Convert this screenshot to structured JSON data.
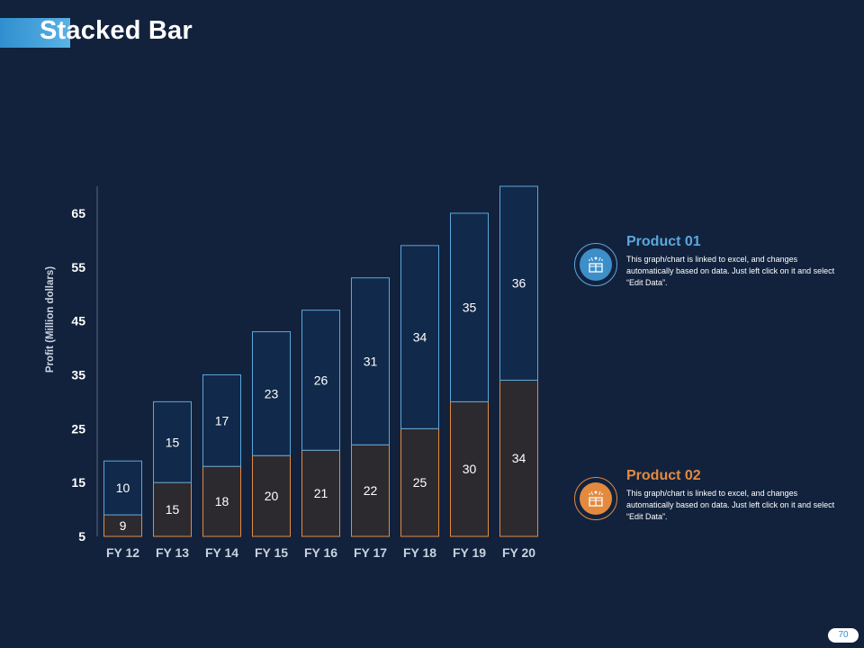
{
  "slide": {
    "title": "Stacked Bar",
    "page_number": "70"
  },
  "colors": {
    "product01": "#5aa8dc",
    "product02": "#e38a3f",
    "background": "#12223d",
    "bar_top_fill": "#11294a",
    "bar_bottom_fill": "#2d2a2f"
  },
  "legend": [
    {
      "title": "Product 01",
      "description": "This graph/chart is linked to excel, and changes automatically based on data. Just left click on it and select “Edit Data”.",
      "icon": "gift-box-icon"
    },
    {
      "title": "Product 02",
      "description": "This graph/chart is linked to excel, and changes automatically based on data. Just left click on it and select “Edit Data”.",
      "icon": "gift-box-icon"
    }
  ],
  "chart_data": {
    "type": "bar",
    "stacked": true,
    "title": "",
    "xlabel": "",
    "ylabel": "Profit  (Million dollars)",
    "categories": [
      "FY 12",
      "FY 13",
      "FY 14",
      "FY 15",
      "FY 16",
      "FY 17",
      "FY 18",
      "FY 19",
      "FY 20"
    ],
    "series": [
      {
        "name": "Product 02",
        "values": [
          9,
          15,
          18,
          20,
          21,
          22,
          25,
          30,
          34
        ]
      },
      {
        "name": "Product 01",
        "values": [
          10,
          15,
          17,
          23,
          26,
          31,
          34,
          35,
          36
        ]
      }
    ],
    "yticks": [
      5,
      15,
      25,
      35,
      45,
      55,
      65
    ],
    "ytick_labels": [
      "5",
      "15",
      "25",
      "35",
      "45",
      "55",
      "65"
    ],
    "ylim": [
      5,
      70
    ],
    "grid": false,
    "legend_position": "right"
  }
}
